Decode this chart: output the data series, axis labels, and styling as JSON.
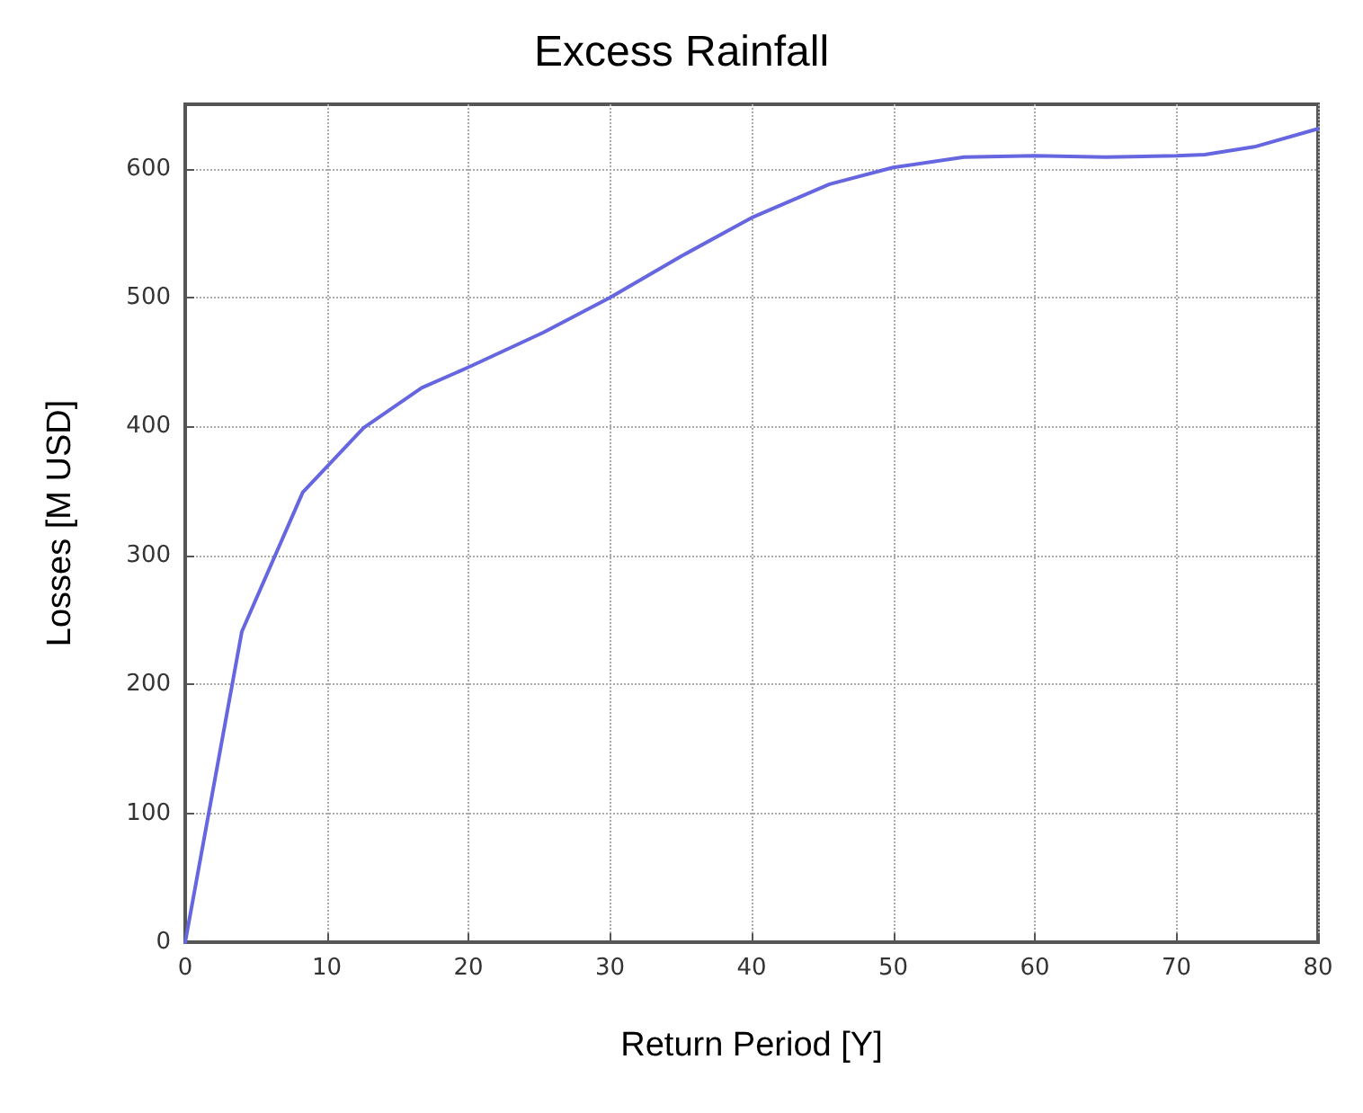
{
  "chart_data": {
    "type": "line",
    "title": "Excess Rainfall",
    "xlabel": "Return Period [Y]",
    "ylabel": "Losses [M USD]",
    "x": [
      0,
      4,
      8.3,
      12.6,
      16.7,
      20,
      25.3,
      30,
      35,
      40,
      45.5,
      50,
      55,
      60,
      65,
      70,
      72,
      75.5,
      80
    ],
    "series": [
      {
        "color": "#6666e0",
        "values": [
          0,
          241,
          349,
          399,
          430,
          446,
          473,
          500,
          532,
          562,
          588,
          601,
          609,
          610,
          609,
          610,
          611,
          617,
          631
        ]
      }
    ],
    "xlim": [
      0,
      80
    ],
    "ylim": [
      0,
      650
    ],
    "xticks": [
      0,
      10,
      20,
      30,
      40,
      50,
      60,
      70,
      80
    ],
    "yticks": [
      0,
      100,
      200,
      300,
      400,
      500,
      600
    ],
    "grid": true,
    "marker": "none",
    "line_style": "solid"
  }
}
